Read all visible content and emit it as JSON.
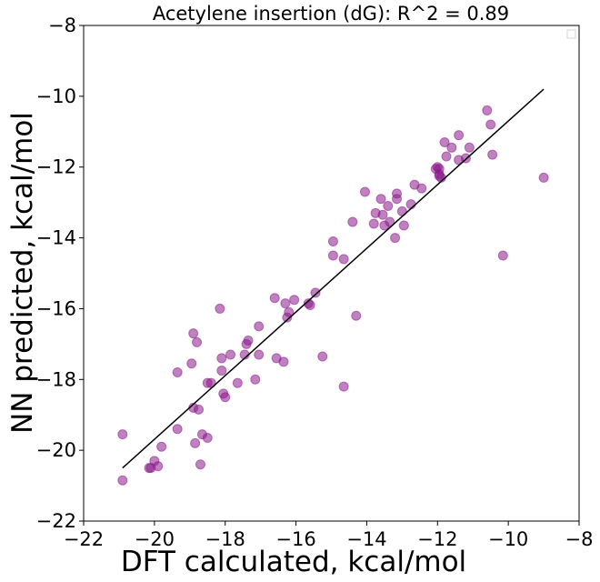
{
  "chart_data": {
    "type": "scatter",
    "title": "Acetylene insertion (dG): R^2 = 0.89",
    "xlabel": "DFT calculated, kcal/mol",
    "ylabel": "NN predicted, kcal/mol",
    "xlim": [
      -22,
      -8
    ],
    "ylim": [
      -22,
      -8
    ],
    "xticks": [
      -22,
      -20,
      -18,
      -16,
      -14,
      -12,
      -10,
      -8
    ],
    "yticks": [
      -22,
      -20,
      -18,
      -16,
      -14,
      -12,
      -10,
      -8
    ],
    "xtick_labels": [
      "−22",
      "−20",
      "−18",
      "−16",
      "−14",
      "−12",
      "−10",
      "−8"
    ],
    "ytick_labels": [
      "−22",
      "−20",
      "−18",
      "−16",
      "−14",
      "−12",
      "−10",
      "−8"
    ],
    "grid": false,
    "legend": "top-right (empty)",
    "marker_color": "#8B1A8B",
    "line_color": "#000000",
    "fit_line": {
      "x": [
        -20.9,
        -9.0
      ],
      "y": [
        -20.5,
        -9.8
      ]
    },
    "points": [
      {
        "x": -20.9,
        "y": -19.55
      },
      {
        "x": -20.9,
        "y": -20.85
      },
      {
        "x": -20.15,
        "y": -20.5
      },
      {
        "x": -20.1,
        "y": -20.5
      },
      {
        "x": -20.0,
        "y": -20.3
      },
      {
        "x": -19.9,
        "y": -20.45
      },
      {
        "x": -19.8,
        "y": -19.9
      },
      {
        "x": -19.35,
        "y": -19.4
      },
      {
        "x": -19.35,
        "y": -17.8
      },
      {
        "x": -18.95,
        "y": -17.55
      },
      {
        "x": -18.9,
        "y": -16.7
      },
      {
        "x": -18.9,
        "y": -18.8
      },
      {
        "x": -18.85,
        "y": -19.8
      },
      {
        "x": -18.8,
        "y": -16.95
      },
      {
        "x": -18.75,
        "y": -18.85
      },
      {
        "x": -18.7,
        "y": -20.4
      },
      {
        "x": -18.65,
        "y": -19.55
      },
      {
        "x": -18.5,
        "y": -19.65
      },
      {
        "x": -18.5,
        "y": -18.1
      },
      {
        "x": -18.4,
        "y": -18.1
      },
      {
        "x": -18.15,
        "y": -16.0
      },
      {
        "x": -18.1,
        "y": -17.4
      },
      {
        "x": -18.1,
        "y": -17.75
      },
      {
        "x": -18.05,
        "y": -18.4
      },
      {
        "x": -18.0,
        "y": -18.5
      },
      {
        "x": -17.85,
        "y": -17.3
      },
      {
        "x": -17.65,
        "y": -18.1
      },
      {
        "x": -17.45,
        "y": -17.3
      },
      {
        "x": -17.4,
        "y": -17.0
      },
      {
        "x": -17.35,
        "y": -16.9
      },
      {
        "x": -17.15,
        "y": -18.0
      },
      {
        "x": -17.05,
        "y": -17.3
      },
      {
        "x": -17.05,
        "y": -16.5
      },
      {
        "x": -16.6,
        "y": -15.7
      },
      {
        "x": -16.55,
        "y": -17.4
      },
      {
        "x": -16.35,
        "y": -17.5
      },
      {
        "x": -16.3,
        "y": -15.85
      },
      {
        "x": -16.25,
        "y": -16.25
      },
      {
        "x": -16.2,
        "y": -16.1
      },
      {
        "x": -16.05,
        "y": -15.75
      },
      {
        "x": -15.65,
        "y": -15.85
      },
      {
        "x": -15.6,
        "y": -15.9
      },
      {
        "x": -15.45,
        "y": -15.55
      },
      {
        "x": -15.25,
        "y": -17.35
      },
      {
        "x": -14.95,
        "y": -14.1
      },
      {
        "x": -14.95,
        "y": -14.5
      },
      {
        "x": -14.65,
        "y": -14.6
      },
      {
        "x": -14.65,
        "y": -18.2
      },
      {
        "x": -14.4,
        "y": -13.55
      },
      {
        "x": -14.3,
        "y": -16.2
      },
      {
        "x": -14.05,
        "y": -12.7
      },
      {
        "x": -13.8,
        "y": -13.6
      },
      {
        "x": -13.75,
        "y": -13.3
      },
      {
        "x": -13.6,
        "y": -12.9
      },
      {
        "x": -13.55,
        "y": -13.35
      },
      {
        "x": -13.5,
        "y": -13.65
      },
      {
        "x": -13.4,
        "y": -13.1
      },
      {
        "x": -13.35,
        "y": -13.55
      },
      {
        "x": -13.2,
        "y": -14.0
      },
      {
        "x": -13.15,
        "y": -12.75
      },
      {
        "x": -13.15,
        "y": -12.9
      },
      {
        "x": -13.0,
        "y": -13.25
      },
      {
        "x": -12.95,
        "y": -13.65
      },
      {
        "x": -12.75,
        "y": -13.05
      },
      {
        "x": -12.65,
        "y": -12.5
      },
      {
        "x": -12.45,
        "y": -12.6
      },
      {
        "x": -12.05,
        "y": -12.05
      },
      {
        "x": -12.0,
        "y": -12.0
      },
      {
        "x": -11.95,
        "y": -12.25
      },
      {
        "x": -11.95,
        "y": -12.2
      },
      {
        "x": -11.95,
        "y": -12.05
      },
      {
        "x": -11.9,
        "y": -12.3
      },
      {
        "x": -11.8,
        "y": -11.3
      },
      {
        "x": -11.75,
        "y": -11.7
      },
      {
        "x": -11.6,
        "y": -11.45
      },
      {
        "x": -11.4,
        "y": -11.1
      },
      {
        "x": -11.4,
        "y": -11.8
      },
      {
        "x": -11.2,
        "y": -11.75
      },
      {
        "x": -11.1,
        "y": -11.45
      },
      {
        "x": -10.6,
        "y": -10.4
      },
      {
        "x": -10.5,
        "y": -10.8
      },
      {
        "x": -10.45,
        "y": -11.65
      },
      {
        "x": -10.15,
        "y": -14.5
      },
      {
        "x": -9.0,
        "y": -12.3
      }
    ]
  }
}
